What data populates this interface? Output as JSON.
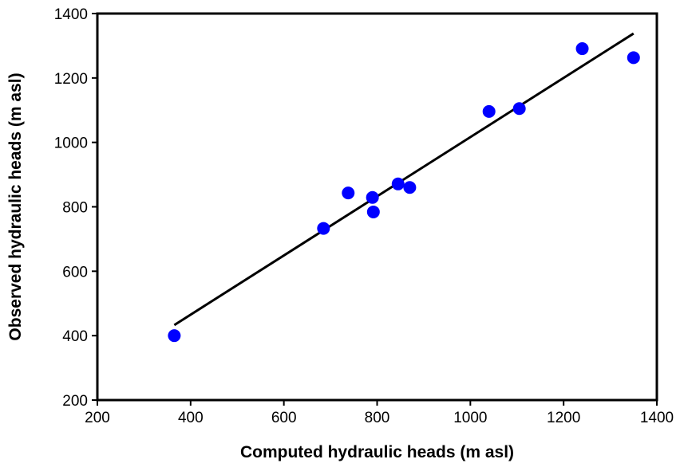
{
  "chart_data": {
    "type": "scatter",
    "title": "",
    "xlabel": "Computed hydraulic heads (m asl)",
    "ylabel": "Observed hydraulic heads (m asl)",
    "xlim": [
      200,
      1400
    ],
    "ylim": [
      200,
      1400
    ],
    "xticks": [
      200,
      400,
      600,
      800,
      1000,
      1200,
      1400
    ],
    "yticks": [
      200,
      400,
      600,
      800,
      1000,
      1200,
      1400
    ],
    "xtick_labels": [
      "200",
      "400",
      "600",
      "800",
      "1000",
      "1200",
      "1400"
    ],
    "ytick_labels": [
      "200",
      "400",
      "600",
      "800",
      "1000",
      "1200",
      "1400"
    ],
    "grid": false,
    "series": [
      {
        "marker_color": "#0000ff",
        "points": [
          {
            "x": 365,
            "y": 400
          },
          {
            "x": 685,
            "y": 733
          },
          {
            "x": 738,
            "y": 843
          },
          {
            "x": 790,
            "y": 829
          },
          {
            "x": 792,
            "y": 784
          },
          {
            "x": 845,
            "y": 871
          },
          {
            "x": 870,
            "y": 860
          },
          {
            "x": 1040,
            "y": 1096
          },
          {
            "x": 1105,
            "y": 1105
          },
          {
            "x": 1240,
            "y": 1291
          },
          {
            "x": 1350,
            "y": 1263
          }
        ]
      }
    ],
    "trendline": {
      "color": "#000000",
      "x": [
        365,
        1350
      ],
      "y": [
        433,
        1338
      ]
    }
  }
}
